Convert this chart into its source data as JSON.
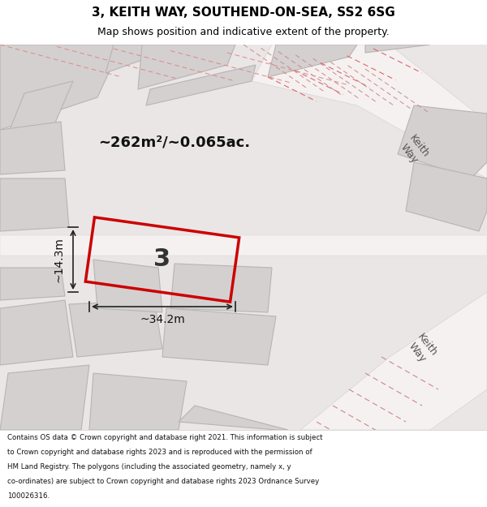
{
  "title_line1": "3, KEITH WAY, SOUTHEND-ON-SEA, SS2 6SG",
  "title_line2": "Map shows position and indicative extent of the property.",
  "footer_text": "Contains OS data © Crown copyright and database right 2021. This information is subject to Crown copyright and database rights 2023 and is reproduced with the permission of HM Land Registry. The polygons (including the associated geometry, namely x, y co-ordinates) are subject to Crown copyright and database rights 2023 Ordnance Survey 100026316.",
  "area_m2": "~262m²/~0.065ac.",
  "width_label": "~34.2m",
  "height_label": "~14.3m",
  "property_number": "3",
  "bg_color": "#f0eeee",
  "map_bg": "#e8e4e4",
  "road_color": "#ffffff",
  "building_color": "#d8d4d4",
  "property_outline_color": "#cc0000",
  "title_bg": "#ffffff",
  "footer_bg": "#ffffff"
}
